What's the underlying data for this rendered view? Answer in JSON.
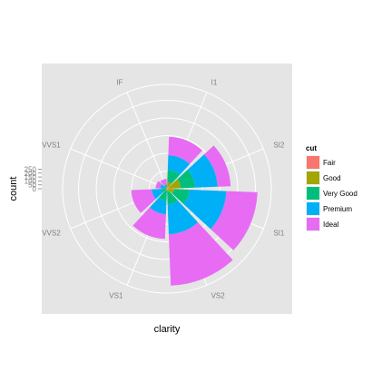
{
  "chart_data": {
    "type": "bar",
    "coord": "polar",
    "position": "stack",
    "xlabel": "clarity",
    "ylabel": "count",
    "categories": [
      "I1",
      "SI2",
      "SI1",
      "VS2",
      "VS1",
      "VVS2",
      "VVS1",
      "IF"
    ],
    "y_ticks": [
      0,
      50,
      100,
      150,
      200,
      250
    ],
    "ylim": [
      0,
      300
    ],
    "grid": true,
    "legend": {
      "title": "cut",
      "position": "right"
    },
    "series": [
      {
        "name": "Fair",
        "color": "#F8766D",
        "values": [
          6,
          7,
          4,
          2,
          1,
          0,
          1,
          0
        ]
      },
      {
        "name": "Good",
        "color": "#A3A500",
        "values": [
          13,
          32,
          16,
          6,
          3,
          4,
          2,
          2
        ]
      },
      {
        "name": "Very Good",
        "color": "#00BF7D",
        "values": [
          34,
          40,
          44,
          37,
          30,
          12,
          6,
          3
        ]
      },
      {
        "name": "Premium",
        "color": "#00B0F6",
        "values": [
          42,
          64,
          104,
          84,
          38,
          27,
          10,
          7
        ]
      },
      {
        "name": "Ideal",
        "color": "#E76BF3",
        "values": [
          52,
          37,
          88,
          145,
          70,
          58,
          13,
          16
        ]
      }
    ]
  }
}
